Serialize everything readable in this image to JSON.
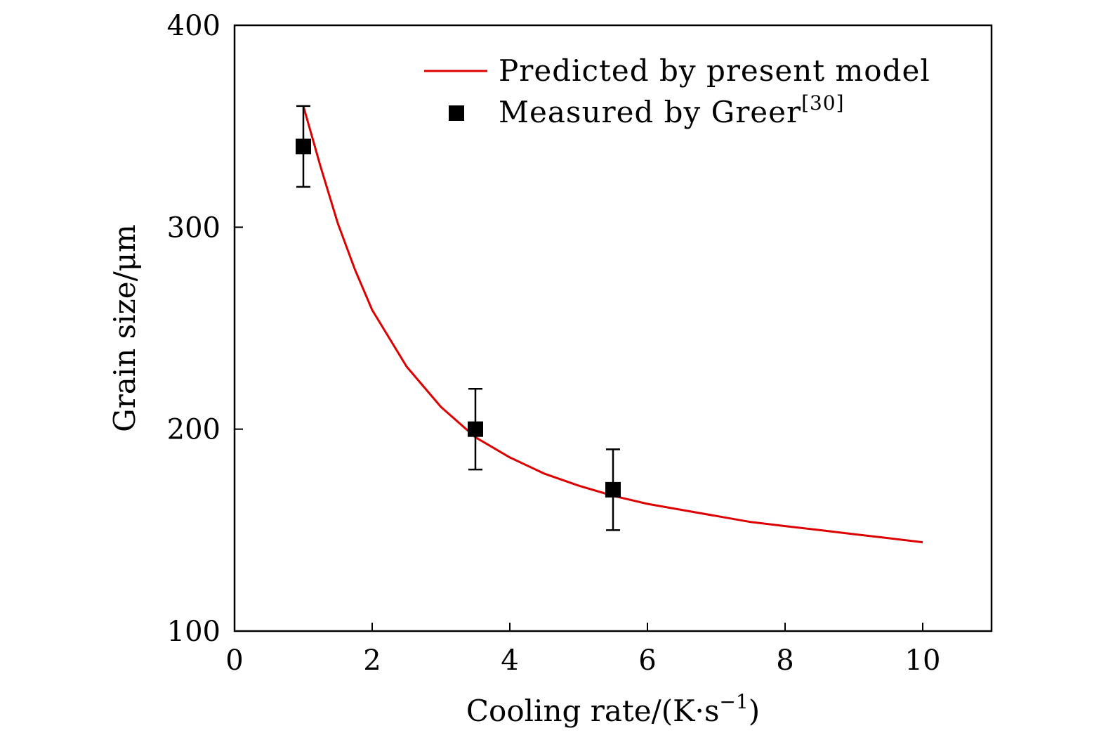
{
  "chart_data": {
    "type": "line",
    "xlabel": "Cooling rate/(K·s",
    "xlabel_sup": "−1",
    "xlabel_tail": ")",
    "ylabel": "Grain size/μm",
    "xlim": [
      0,
      11
    ],
    "ylim": [
      100,
      400
    ],
    "x_ticks": [
      0,
      2,
      4,
      6,
      8,
      10
    ],
    "y_ticks": [
      100,
      200,
      300,
      400
    ],
    "legend_position": "top-right",
    "series": [
      {
        "name": "Predicted by present model",
        "kind": "line",
        "color": "#dd0000",
        "x": [
          1.0,
          1.25,
          1.5,
          1.75,
          2.0,
          2.5,
          3.0,
          3.5,
          4.0,
          4.5,
          5.0,
          5.5,
          6.0,
          6.5,
          7.0,
          7.5,
          8.0,
          8.5,
          9.0,
          9.5,
          10.0
        ],
        "y": [
          360,
          330,
          302,
          279,
          259,
          231,
          211,
          196,
          186,
          178,
          172,
          167,
          163,
          160,
          157,
          154,
          152,
          150,
          148,
          146,
          144
        ]
      },
      {
        "name": "Measured by Greer",
        "name_sup": "[30]",
        "kind": "scatter",
        "color": "#000000",
        "x": [
          1.0,
          3.5,
          5.5
        ],
        "y": [
          340,
          200,
          170
        ],
        "yerr": [
          20,
          20,
          20
        ]
      }
    ]
  }
}
